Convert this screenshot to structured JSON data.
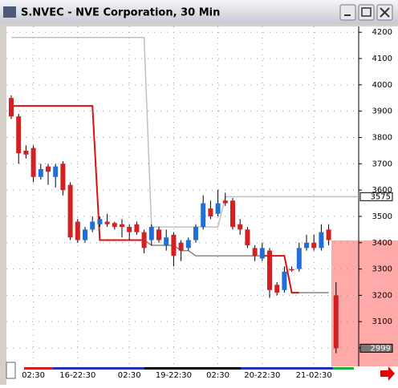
{
  "window": {
    "title": "S.NVEC - NVE Corporation, 30 Min"
  },
  "chart_data": {
    "type": "candlestick",
    "categories": [
      null,
      null,
      null,
      "02:30",
      null,
      null,
      null,
      null,
      null,
      "16-22:30",
      null,
      null,
      null,
      null,
      null,
      null,
      "02:30",
      null,
      null,
      null,
      null,
      null,
      "19-22:30",
      null,
      null,
      null,
      null,
      null,
      "02:30",
      null,
      null,
      null,
      null,
      null,
      "20-22:30",
      null,
      null,
      null,
      null,
      null,
      null,
      "21-02:30",
      null,
      null,
      null
    ],
    "candles": [
      [
        3950,
        3960,
        3870,
        3880
      ],
      [
        3880,
        3890,
        3700,
        3740
      ],
      [
        3750,
        3770,
        3720,
        3735
      ],
      [
        3760,
        3770,
        3630,
        3650
      ],
      [
        3650,
        3700,
        3640,
        3680
      ],
      [
        3690,
        3700,
        3620,
        3670
      ],
      [
        3650,
        3700,
        3610,
        3690
      ],
      [
        3700,
        3710,
        3580,
        3600
      ],
      [
        3620,
        3630,
        3410,
        3420
      ],
      [
        3480,
        3490,
        3400,
        3410
      ],
      [
        3410,
        3460,
        3400,
        3450
      ],
      [
        3450,
        3500,
        3440,
        3480
      ],
      [
        3470,
        3500,
        3460,
        3490
      ],
      [
        3480,
        3510,
        3460,
        3470
      ],
      [
        3475,
        3480,
        3450,
        3460
      ],
      [
        3470,
        3490,
        3420,
        3460
      ],
      [
        3460,
        3470,
        3410,
        3440
      ],
      [
        3470,
        3480,
        3430,
        3440
      ],
      [
        3440,
        3450,
        3360,
        3380
      ],
      [
        3410,
        3470,
        3390,
        3460
      ],
      [
        3450,
        3460,
        3400,
        3410
      ],
      [
        3390,
        3450,
        3370,
        3420
      ],
      [
        3430,
        3440,
        3310,
        3350
      ],
      [
        3400,
        3410,
        3330,
        3370
      ],
      [
        3380,
        3420,
        3370,
        3410
      ],
      [
        3410,
        3470,
        3400,
        3460
      ],
      [
        3460,
        3580,
        3450,
        3550
      ],
      [
        3530,
        3560,
        3490,
        3500
      ],
      [
        3510,
        3600,
        3500,
        3550
      ],
      [
        3560,
        3590,
        3540,
        3550
      ],
      [
        3560,
        3570,
        3450,
        3460
      ],
      [
        3470,
        3490,
        3430,
        3450
      ],
      [
        3450,
        3460,
        3380,
        3390
      ],
      [
        3380,
        3390,
        3330,
        3350
      ],
      [
        3340,
        3400,
        3330,
        3380
      ],
      [
        3370,
        3380,
        3190,
        3220
      ],
      [
        3240,
        3250,
        3200,
        3210
      ],
      [
        3220,
        3310,
        3210,
        3290
      ],
      [
        3300,
        3310,
        3290,
        3295
      ],
      [
        3300,
        3400,
        3290,
        3380
      ],
      [
        3380,
        3430,
        3370,
        3400
      ],
      [
        3400,
        3430,
        3370,
        3380
      ],
      [
        3380,
        3470,
        3370,
        3440
      ],
      [
        3450,
        3470,
        3390,
        3410
      ],
      [
        3200,
        3250,
        2980,
        2999
      ]
    ],
    "up_color": "#1f6fd6",
    "down_color": "#d42020",
    "lines": [
      {
        "color": "#c0c0c0",
        "values": [
          4180,
          4180,
          4180,
          4180,
          4180,
          4180,
          4180,
          4180,
          4180,
          4180,
          4180,
          4180,
          4180,
          4180,
          4180,
          4180,
          4180,
          4180,
          4180,
          3460,
          3460,
          3460,
          3460,
          3460,
          3460,
          3460,
          3460,
          3460,
          3460,
          3575,
          3575,
          3575,
          3575,
          3575,
          3575,
          3575,
          3575,
          3575,
          3575,
          3575,
          3575,
          3575,
          3575,
          3575,
          3575
        ]
      },
      {
        "color": "#888888",
        "values": [
          null,
          null,
          null,
          null,
          null,
          null,
          null,
          null,
          null,
          null,
          null,
          null,
          null,
          null,
          null,
          null,
          null,
          null,
          3410,
          3390,
          3390,
          3390,
          3390,
          3370,
          3370,
          3350,
          3350,
          3350,
          3350,
          3350,
          3350,
          3350,
          3350,
          3350,
          3350,
          null,
          null,
          null,
          3210,
          3210,
          3210,
          3210,
          3210,
          3210,
          null
        ]
      },
      {
        "color": "#e01010",
        "values": [
          3920,
          3920,
          3920,
          3920,
          3920,
          3920,
          3920,
          3920,
          3920,
          3920,
          3920,
          3920,
          3410,
          3410,
          3410,
          3410,
          3410,
          3410,
          3410,
          null,
          null,
          null,
          null,
          null,
          null,
          null,
          null,
          null,
          null,
          null,
          null,
          null,
          null,
          null,
          3350,
          3350,
          3350,
          3350,
          3210,
          3210,
          null,
          null,
          null,
          null,
          null
        ]
      }
    ],
    "ylim": [
      2930,
      4222
    ],
    "yticks": [
      3000,
      3100,
      3200,
      3300,
      3400,
      3500,
      3600,
      3700,
      3800,
      3900,
      4000,
      4100,
      4200
    ],
    "price_markers": [
      3575,
      2999
    ],
    "grid": true
  }
}
